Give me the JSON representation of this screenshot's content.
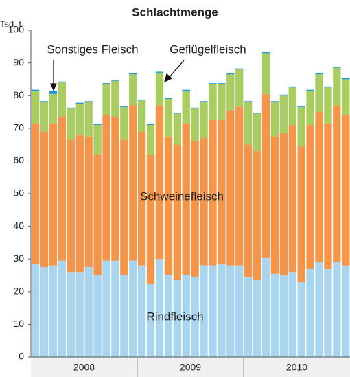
{
  "chart_data": {
    "type": "stacked_bar",
    "title": "Schlachtmenge",
    "y_axis_label": "Tsd. t",
    "categories": [
      null,
      null,
      null,
      null,
      null,
      null,
      null,
      null,
      null,
      null,
      null,
      null,
      null,
      null,
      null,
      null,
      null,
      null,
      null,
      null,
      null,
      null,
      null,
      null,
      null,
      null,
      null,
      null,
      null,
      null,
      null,
      null,
      null,
      null,
      null,
      null
    ],
    "x_group_labels": [
      "2008",
      "2009",
      "2010"
    ],
    "series": [
      {
        "name": "Rindfleisch",
        "color": "#a9d5ef",
        "values": [
          28.5,
          27.5,
          28,
          29.5,
          26,
          26,
          27.5,
          25,
          29.5,
          29.5,
          25,
          29.5,
          28,
          22.5,
          30,
          25,
          23.5,
          25,
          24.5,
          28,
          28,
          28.5,
          28,
          28,
          24.5,
          23.5,
          30.5,
          25.5,
          25,
          26,
          23,
          27,
          29,
          27,
          29,
          28
        ]
      },
      {
        "name": "Schweinefleisch",
        "color": "#f5954a",
        "values": [
          43,
          41.5,
          43.5,
          44,
          40.5,
          42,
          40,
          37,
          44.5,
          44,
          41.5,
          47.5,
          41,
          39.5,
          47,
          42.5,
          41.5,
          46.5,
          41.5,
          39,
          44.5,
          44,
          47.5,
          48.5,
          40.5,
          39.5,
          50,
          42,
          43.5,
          45,
          41.5,
          44,
          46,
          44.5,
          48,
          46
        ]
      },
      {
        "name": "Geflügelfleisch",
        "color": "#a9cd60",
        "values": [
          10,
          9,
          9,
          10.5,
          9.5,
          9.5,
          10.5,
          9,
          9.5,
          11,
          10,
          9.5,
          9.5,
          9,
          10,
          11.5,
          9.5,
          10,
          10,
          11,
          11,
          11,
          11,
          11.5,
          13,
          11.5,
          12.5,
          10.5,
          11.5,
          11.5,
          12,
          10.5,
          11.5,
          11,
          11.5,
          11
        ]
      },
      {
        "name": "Sonstiges Fleisch",
        "color": "#1f9ad6",
        "values": [
          0.3,
          0.3,
          1,
          0.3,
          0.3,
          0.3,
          0.3,
          0.3,
          0.3,
          0.3,
          0.3,
          0.3,
          0.3,
          0.3,
          0.3,
          0.3,
          0.3,
          0.3,
          0.3,
          0.3,
          0.3,
          0.3,
          0.3,
          0.3,
          0.3,
          0.3,
          0.3,
          0.3,
          0.3,
          0.3,
          0.3,
          0.3,
          0.3,
          0.3,
          0.3,
          0.3
        ]
      }
    ],
    "ylim": [
      0,
      100
    ],
    "yticks": [
      0,
      10,
      20,
      30,
      40,
      50,
      60,
      70,
      80,
      90,
      100
    ],
    "grid": false
  }
}
